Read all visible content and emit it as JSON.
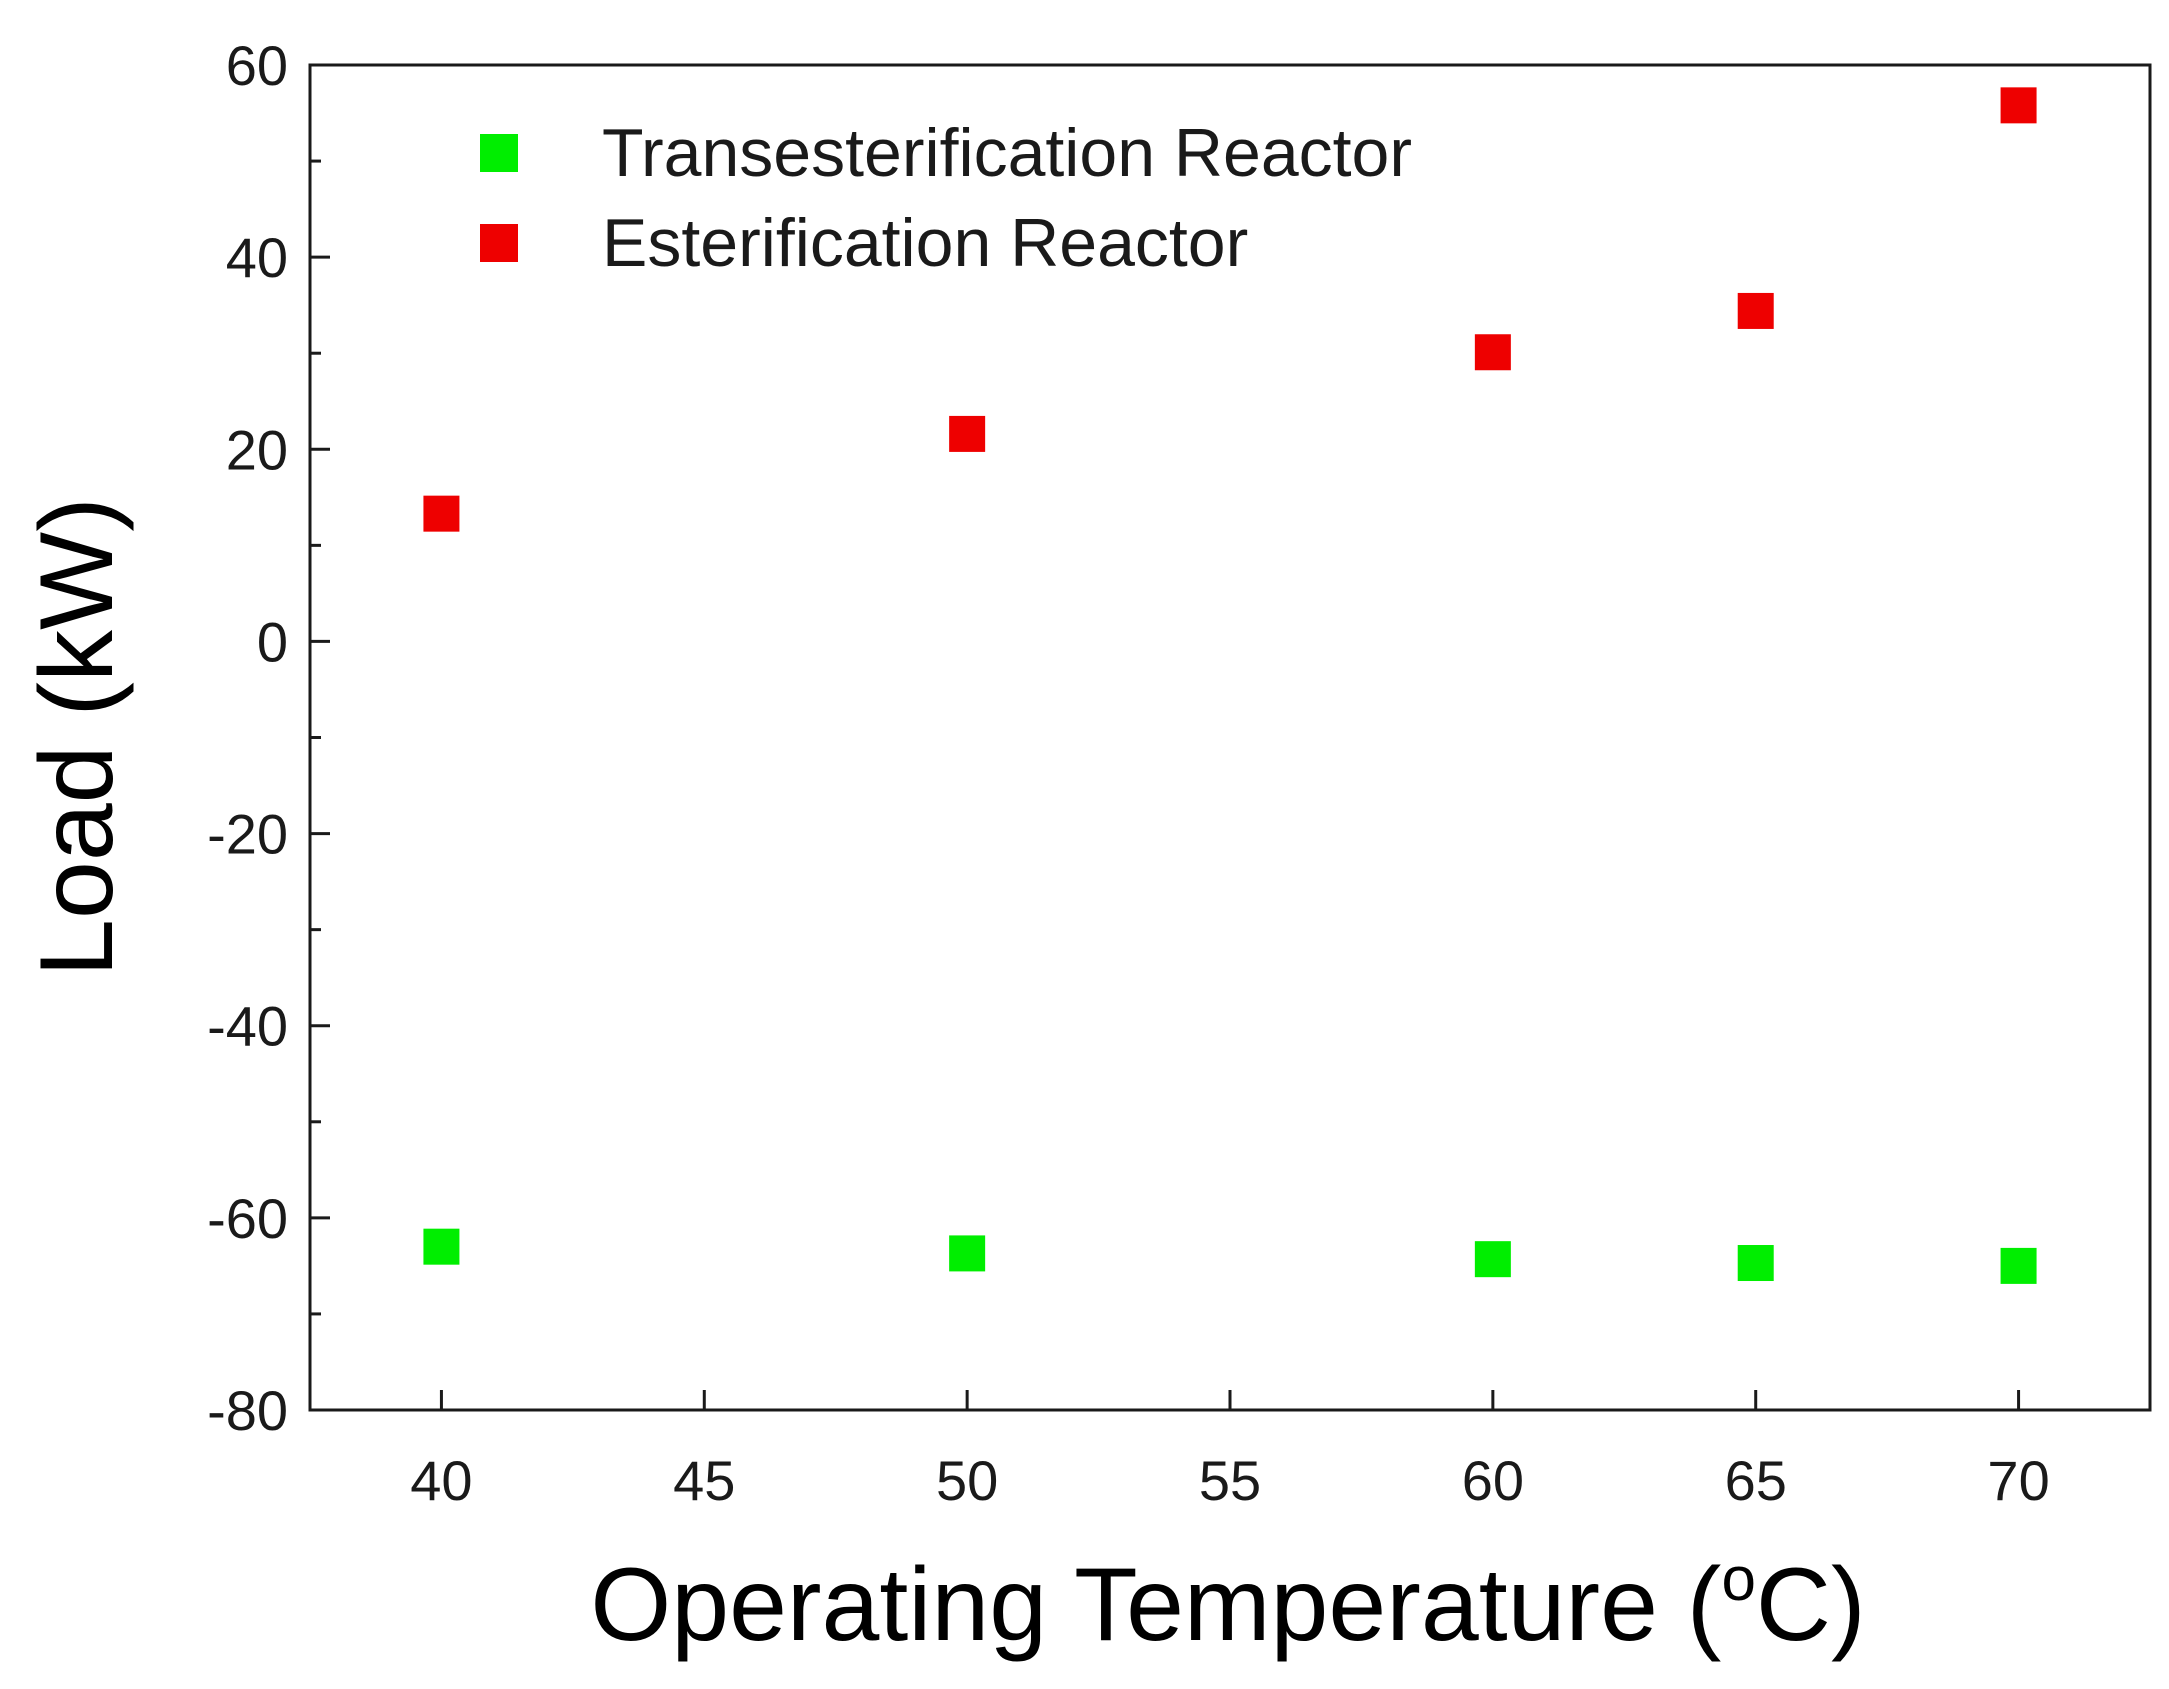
{
  "chart_data": {
    "type": "scatter",
    "title": "",
    "xlabel": "Operating Temperature (",
    "xlabel_superscript": "o",
    "xlabel_suffix": "C)",
    "ylabel": "Load (kW)",
    "xlim": [
      37.5,
      72.5
    ],
    "ylim": [
      -80,
      60
    ],
    "xticks": [
      40,
      45,
      50,
      55,
      60,
      65,
      70
    ],
    "yticks": [
      -80,
      -60,
      -40,
      -20,
      0,
      20,
      40,
      60
    ],
    "x_minor_step": 5,
    "y_minor_step": 10,
    "grid": false,
    "legend_position": "top-left",
    "series": [
      {
        "name": "Transesterification Reactor",
        "color": "#00ee00",
        "marker": "square",
        "x": [
          40,
          50,
          60,
          65,
          70
        ],
        "y": [
          -63,
          -63.7,
          -64.3,
          -64.7,
          -65
        ]
      },
      {
        "name": "Esterification Reactor",
        "color": "#ee0000",
        "marker": "square",
        "x": [
          40,
          50,
          60,
          65,
          70
        ],
        "y": [
          13.3,
          21.6,
          30.1,
          34.4,
          55.8
        ]
      }
    ]
  }
}
